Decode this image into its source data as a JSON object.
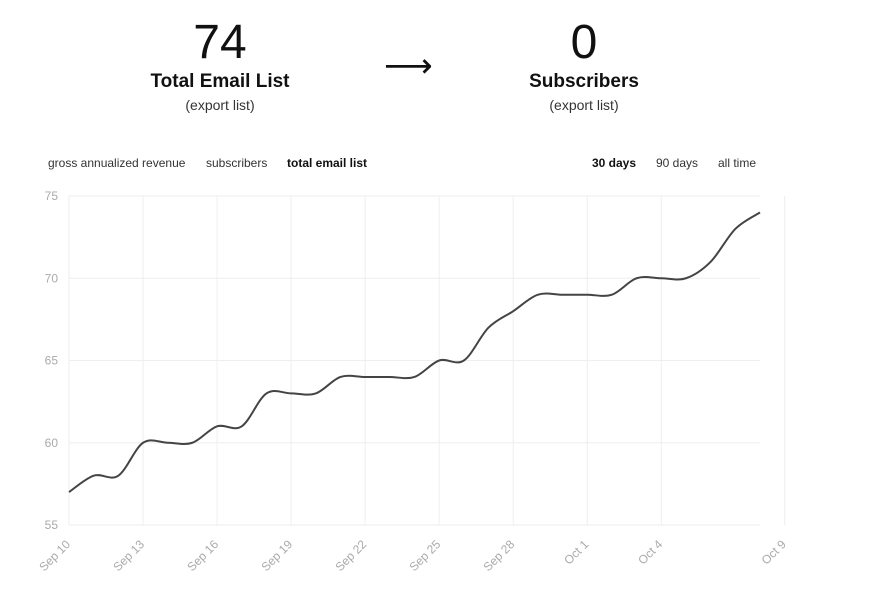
{
  "stats": {
    "left": {
      "value": "74",
      "label": "Total Email List",
      "link": "(export list)"
    },
    "arrow": "⟶",
    "right": {
      "value": "0",
      "label": "Subscribers",
      "link": "(export list)"
    }
  },
  "metric_tabs": [
    {
      "label": "gross annualized revenue",
      "active": false
    },
    {
      "label": "subscribers",
      "active": false
    },
    {
      "label": "total email list",
      "active": true
    }
  ],
  "range_tabs": [
    {
      "label": "30 days",
      "active": true
    },
    {
      "label": "90 days",
      "active": false
    },
    {
      "label": "all time",
      "active": false
    }
  ],
  "colors": {
    "line": "#444444",
    "grid": "#eeeeee",
    "tick": "#aaaaaa"
  },
  "chart_data": {
    "type": "line",
    "x_ticks": [
      "Sep 10",
      "Sep 13",
      "Sep 16",
      "Sep 19",
      "Sep 22",
      "Sep 25",
      "Sep 28",
      "Oct 1",
      "Oct 4",
      "Oct 9"
    ],
    "x_tick_days": [
      0,
      3,
      6,
      9,
      12,
      15,
      18,
      21,
      24,
      29
    ],
    "y_ticks": [
      75,
      70,
      65,
      60,
      55
    ],
    "ylim": [
      55,
      75
    ],
    "grid": true,
    "series": [
      {
        "values": [
          57,
          58,
          58,
          60,
          60,
          60,
          61,
          61,
          63,
          63,
          63,
          64,
          64,
          64,
          64,
          65,
          65,
          67,
          68,
          69,
          69,
          69,
          69,
          70,
          70,
          70,
          71,
          73,
          74
        ]
      }
    ]
  }
}
